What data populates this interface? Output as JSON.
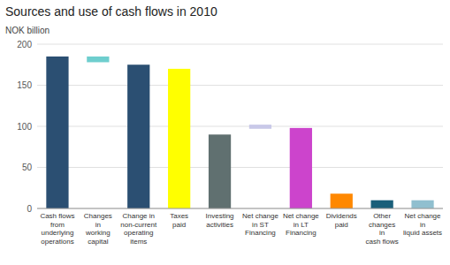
{
  "chart_data": {
    "type": "bar",
    "title": "Sources and use of cash flows in 2010",
    "ylabel": "NOK billion",
    "categories": [
      "Cash flows\nfrom\nunderlying\noperations",
      "Changes\nin\nworking\ncapital",
      "Change in\nnon-current\noperating\nitems",
      "Taxes\npaid",
      "Investing\nactivities",
      "Net change\nin ST\nFinancing",
      "Net change\nin LT\nFinancing",
      "Dividends\npaid",
      "Other\nchanges\nin\ncash flows",
      "Net change\nin\nliquid assets"
    ],
    "values": [
      185,
      7,
      175,
      170,
      90,
      5,
      98,
      18,
      10,
      10
    ],
    "bottoms": [
      0,
      178,
      0,
      0,
      0,
      97,
      0,
      0,
      0,
      0
    ],
    "colors": [
      "#2b4f72",
      "#6ecece",
      "#2b4f72",
      "#ffff00",
      "#607070",
      "#c8c8e8",
      "#cc44cc",
      "#ff8800",
      "#1a5f7a",
      "#90bfcf"
    ],
    "ylim": [
      0,
      200
    ],
    "yticks": [
      0,
      50,
      100,
      150,
      200
    ],
    "grid": true
  }
}
